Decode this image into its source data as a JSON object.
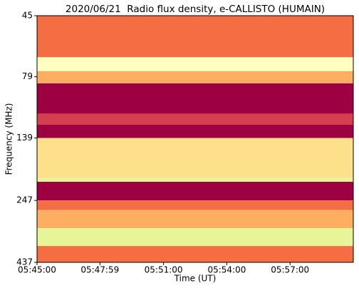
{
  "chart_data": {
    "type": "heatmap",
    "title": "2020/06/21  Radio flux density, e-CALLISTO (HUMAIN)",
    "x_label": "Time (UT)",
    "y_label": "Frequency (MHz)",
    "xlim": [
      "05:45:00",
      "06:00:00"
    ],
    "xticks": [
      "05:45:00",
      "05:47:59",
      "05:51:00",
      "05:54:00",
      "05:57:00"
    ],
    "ylim": [
      45,
      437
    ],
    "yticks": [
      45,
      79,
      139,
      247,
      437
    ],
    "y_log": true,
    "y_inverted": true,
    "y_edges": [
      45,
      66,
      75,
      84,
      111,
      123,
      139,
      201,
      208,
      247,
      270,
      319,
      376,
      437
    ],
    "values": [
      3,
      6,
      4,
      0,
      1,
      0,
      5,
      7,
      0,
      3,
      4,
      7,
      3
    ],
    "colormap": [
      "#9e0142",
      "#d53e4f",
      "#e65a48",
      "#f46d43",
      "#fdae61",
      "#fee08b",
      "#ffffbf",
      "#e6f598"
    ]
  }
}
